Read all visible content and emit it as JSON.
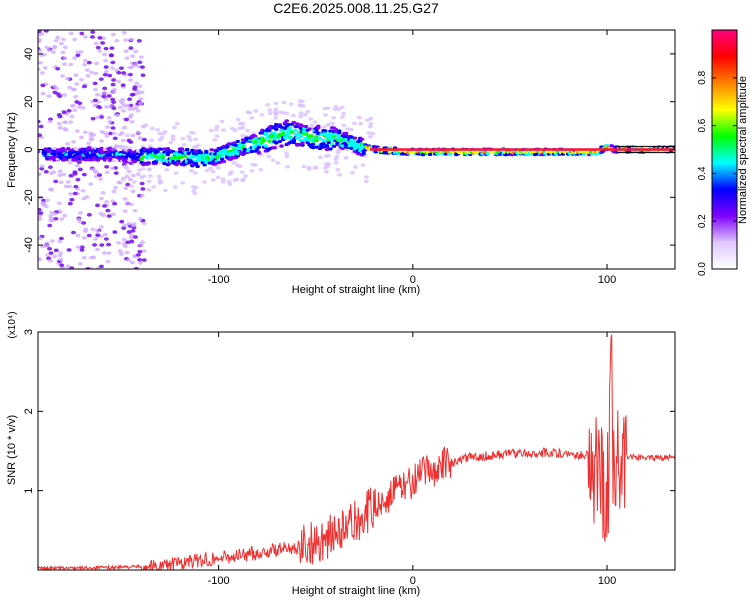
{
  "figure": {
    "title": "C2E6.2025.008.11.25.G27"
  },
  "chart_data": [
    {
      "type": "heatmap",
      "xlabel": "Height of straight line (km)",
      "ylabel": "Frequency (Hz)",
      "xlim": [
        -193,
        135
      ],
      "ylim": [
        -50,
        50
      ],
      "xticks": [
        -100,
        0,
        100
      ],
      "yticks": [
        -40,
        -20,
        0,
        20,
        40
      ],
      "colorbar": {
        "label": "Normalized spectral amplitude",
        "range": [
          0,
          1
        ],
        "ticks": [
          "0.0",
          "0.2",
          "0.4",
          "0.6",
          "0.8"
        ],
        "colors": [
          "#ffffff",
          "#e0c8ff",
          "#8000ff",
          "#0000ff",
          "#00ffff",
          "#00ff00",
          "#ffff00",
          "#ff8000",
          "#ff0000",
          "#ff0080"
        ]
      },
      "ridge": [
        {
          "x": -190,
          "y": -2
        },
        {
          "x": -160,
          "y": -2
        },
        {
          "x": -140,
          "y": -3
        },
        {
          "x": -120,
          "y": -3
        },
        {
          "x": -105,
          "y": -4
        },
        {
          "x": -95,
          "y": -1
        },
        {
          "x": -80,
          "y": 3
        },
        {
          "x": -65,
          "y": 7
        },
        {
          "x": -52,
          "y": 5
        },
        {
          "x": -40,
          "y": 5
        },
        {
          "x": -30,
          "y": 2
        },
        {
          "x": -20,
          "y": 0
        },
        {
          "x": 0,
          "y": -1
        },
        {
          "x": 50,
          "y": -1
        },
        {
          "x": 95,
          "y": -1
        },
        {
          "x": 100,
          "y": 1
        },
        {
          "x": 105,
          "y": 0
        },
        {
          "x": 135,
          "y": 0
        }
      ]
    },
    {
      "type": "line",
      "xlabel": "Height of straight line (km)",
      "ylabel": "SNR (10 * v/v)",
      "multiplier": "(x10⁴)",
      "xlim": [
        -193,
        135
      ],
      "ylim": [
        0,
        3
      ],
      "xticks": [
        -100,
        0,
        100
      ],
      "yticks": [
        1,
        2,
        3
      ],
      "color": "#ee3030",
      "series": [
        {
          "x": [
            -193,
            -160,
            -130,
            -110,
            -90,
            -70,
            -50,
            -35,
            -25,
            -15,
            -5,
            5,
            15,
            30,
            50,
            70,
            90,
            95,
            100,
            103,
            107,
            115,
            135
          ],
          "y": [
            0.02,
            0.03,
            0.05,
            0.12,
            0.18,
            0.25,
            0.35,
            0.5,
            0.7,
            0.9,
            1.05,
            1.2,
            1.32,
            1.42,
            1.47,
            1.48,
            1.45,
            1.2,
            1.0,
            1.5,
            1.45,
            1.42,
            1.42
          ]
        }
      ]
    }
  ]
}
